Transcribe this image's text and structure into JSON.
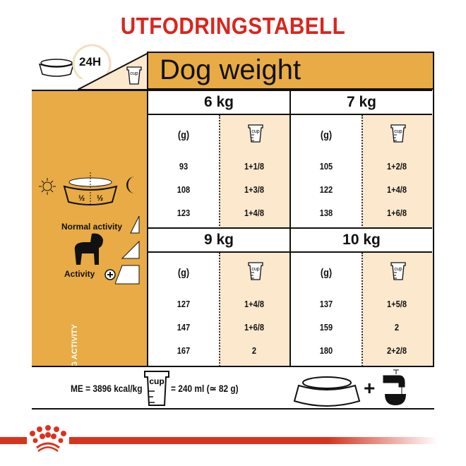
{
  "title": "UTFODRINGSTABELL",
  "header": {
    "period": "24H",
    "dog_weight_label": "Dog weight",
    "cup_icon_label": "cup"
  },
  "left_panel": {
    "half_left": "½",
    "half_right": "½",
    "normal_activity": "Normal activity",
    "activity": "Activity",
    "dog_activity": "DOG ACTIVITY"
  },
  "grams_header": "(g)",
  "blocks": [
    {
      "weight": "6 kg",
      "rows": [
        {
          "g": "93",
          "cups": "1+1/8"
        },
        {
          "g": "108",
          "cups": "1+3/8"
        },
        {
          "g": "123",
          "cups": "1+4/8"
        }
      ]
    },
    {
      "weight": "7 kg",
      "rows": [
        {
          "g": "105",
          "cups": "1+2/8"
        },
        {
          "g": "122",
          "cups": "1+4/8"
        },
        {
          "g": "138",
          "cups": "1+6/8"
        }
      ]
    },
    {
      "weight": "9 kg",
      "rows": [
        {
          "g": "127",
          "cups": "1+4/8"
        },
        {
          "g": "147",
          "cups": "1+6/8"
        },
        {
          "g": "167",
          "cups": "2"
        }
      ]
    },
    {
      "weight": "10 kg",
      "rows": [
        {
          "g": "137",
          "cups": "1+5/8"
        },
        {
          "g": "159",
          "cups": "2"
        },
        {
          "g": "180",
          "cups": "2+2/8"
        }
      ]
    }
  ],
  "footer": {
    "energy": "ME = 3896 kcal/kg",
    "cup_equiv": "= 240 ml (≃ 82 g)",
    "cup_label": "cup",
    "plus": "+"
  },
  "colors": {
    "accent": "#e8ab45",
    "cream": "#fce8cd",
    "brand_red": "#d8261e"
  },
  "icons": [
    "food-bowl-icon",
    "clock-icon",
    "measuring-cup-icon",
    "sun-icon",
    "moon-icon",
    "dog-icon",
    "plus-circle-icon",
    "water-tap-icon",
    "royal-canin-crown-logo"
  ]
}
